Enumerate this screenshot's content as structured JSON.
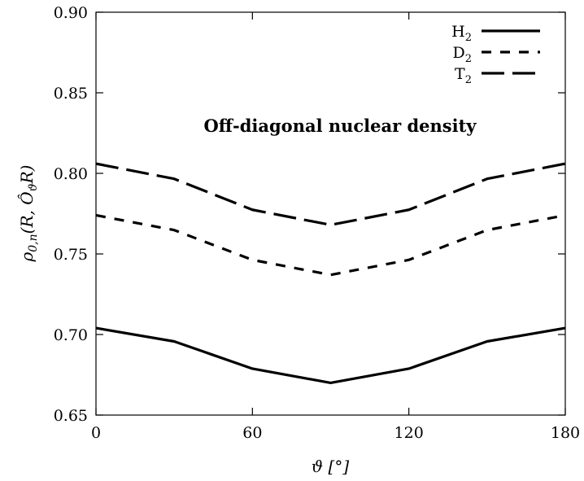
{
  "chart_data": {
    "type": "line",
    "title": "",
    "annotation": "Off-diagonal nuclear density",
    "xlabel": "ϑ [°]",
    "ylabel": "ρ",
    "ylabel_sub": "0,n",
    "ylabel_arg": "(R, Ô",
    "ylabel_arg_sub": "ϑ",
    "ylabel_arg_end": "R)",
    "xlim": [
      0,
      180
    ],
    "ylim": [
      0.65,
      0.9
    ],
    "xticks": [
      0,
      60,
      120,
      180
    ],
    "xtick_labels": [
      "0",
      "60",
      "120",
      "180"
    ],
    "yticks": [
      0.65,
      0.7,
      0.75,
      0.8,
      0.85,
      0.9
    ],
    "ytick_labels": [
      "0.65",
      "0.70",
      "0.75",
      "0.80",
      "0.85",
      "0.90"
    ],
    "grid": false,
    "legend_position": "top-right",
    "series": [
      {
        "name": "H",
        "name_sub": "2",
        "line_style": "solid",
        "color": "#000000",
        "x": [
          0,
          30,
          60,
          90,
          120,
          150,
          180
        ],
        "y": [
          0.704,
          0.6957,
          0.6788,
          0.67,
          0.6788,
          0.6957,
          0.704
        ]
      },
      {
        "name": "D",
        "name_sub": "2",
        "line_style": "short-dash",
        "color": "#000000",
        "x": [
          0,
          30,
          60,
          90,
          120,
          150,
          180
        ],
        "y": [
          0.774,
          0.7648,
          0.7463,
          0.737,
          0.7463,
          0.7648,
          0.774
        ]
      },
      {
        "name": "T",
        "name_sub": "2",
        "line_style": "long-dash",
        "color": "#000000",
        "x": [
          0,
          30,
          60,
          90,
          120,
          150,
          180
        ],
        "y": [
          0.806,
          0.7966,
          0.7774,
          0.768,
          0.7774,
          0.7966,
          0.806
        ]
      }
    ]
  }
}
